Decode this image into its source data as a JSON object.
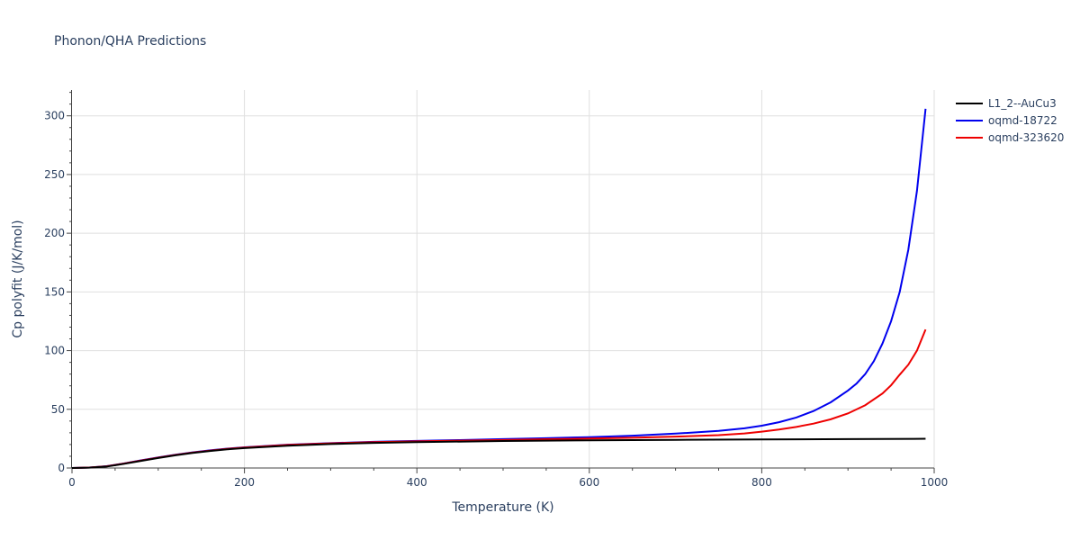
{
  "chart_data": {
    "type": "line",
    "title": "Phonon/QHA Predictions",
    "xlabel": "Temperature (K)",
    "ylabel": "Cp polyfit (J/K/mol)",
    "xlim": [
      0,
      1000
    ],
    "ylim": [
      0,
      322
    ],
    "xticks": [
      0,
      200,
      400,
      600,
      800,
      1000
    ],
    "xtick_labels": [
      "0",
      "200",
      "400",
      "600",
      "800",
      "1000"
    ],
    "yticks": [
      0,
      50,
      100,
      150,
      200,
      250,
      300
    ],
    "ytick_labels": [
      "0",
      "50",
      "100",
      "150",
      "200",
      "250",
      "300"
    ],
    "grid": true,
    "legend_position": "top-right",
    "series": [
      {
        "name": "L1_2--AuCu3",
        "color": "#000000",
        "x": [
          0,
          20,
          40,
          60,
          80,
          100,
          120,
          140,
          160,
          180,
          200,
          250,
          300,
          350,
          400,
          500,
          600,
          700,
          800,
          900,
          990
        ],
        "y": [
          0,
          0.3,
          1.2,
          3.5,
          6.0,
          8.5,
          10.8,
          12.8,
          14.5,
          15.9,
          17.0,
          19.0,
          20.4,
          21.4,
          22.0,
          23.0,
          23.6,
          24.0,
          24.3,
          24.6,
          24.9
        ]
      },
      {
        "name": "oqmd-18722",
        "color": "#0000ee",
        "x": [
          0,
          20,
          40,
          60,
          80,
          100,
          120,
          140,
          160,
          180,
          200,
          250,
          300,
          350,
          400,
          450,
          500,
          550,
          600,
          650,
          700,
          750,
          780,
          800,
          820,
          840,
          860,
          880,
          900,
          910,
          920,
          930,
          940,
          950,
          960,
          970,
          980,
          990
        ],
        "y": [
          0,
          0.4,
          1.5,
          3.8,
          6.5,
          9.0,
          11.3,
          13.3,
          15.0,
          16.5,
          17.6,
          19.8,
          21.2,
          22.3,
          23.1,
          23.8,
          24.6,
          25.4,
          26.3,
          27.5,
          29.3,
          31.6,
          33.8,
          36.0,
          39.0,
          43.0,
          48.5,
          56.0,
          66.0,
          72.0,
          80.0,
          91.0,
          106.0,
          125.0,
          150.0,
          186.0,
          236.0,
          306.0
        ]
      },
      {
        "name": "oqmd-323620",
        "color": "#ee0000",
        "x": [
          0,
          20,
          40,
          60,
          80,
          100,
          120,
          140,
          160,
          180,
          200,
          250,
          300,
          350,
          400,
          450,
          500,
          550,
          600,
          650,
          700,
          750,
          780,
          800,
          820,
          840,
          860,
          880,
          900,
          920,
          940,
          950,
          960,
          970,
          980,
          990
        ],
        "y": [
          0,
          0.4,
          1.4,
          3.7,
          6.3,
          8.8,
          11.1,
          13.1,
          14.8,
          16.3,
          17.4,
          19.6,
          21.0,
          22.0,
          22.7,
          23.3,
          23.9,
          24.5,
          25.1,
          25.8,
          26.7,
          28.0,
          29.4,
          31.0,
          32.8,
          35.0,
          37.8,
          41.5,
          46.5,
          53.5,
          63.5,
          70.5,
          79.5,
          88.0,
          100.0,
          118.0
        ]
      }
    ]
  }
}
